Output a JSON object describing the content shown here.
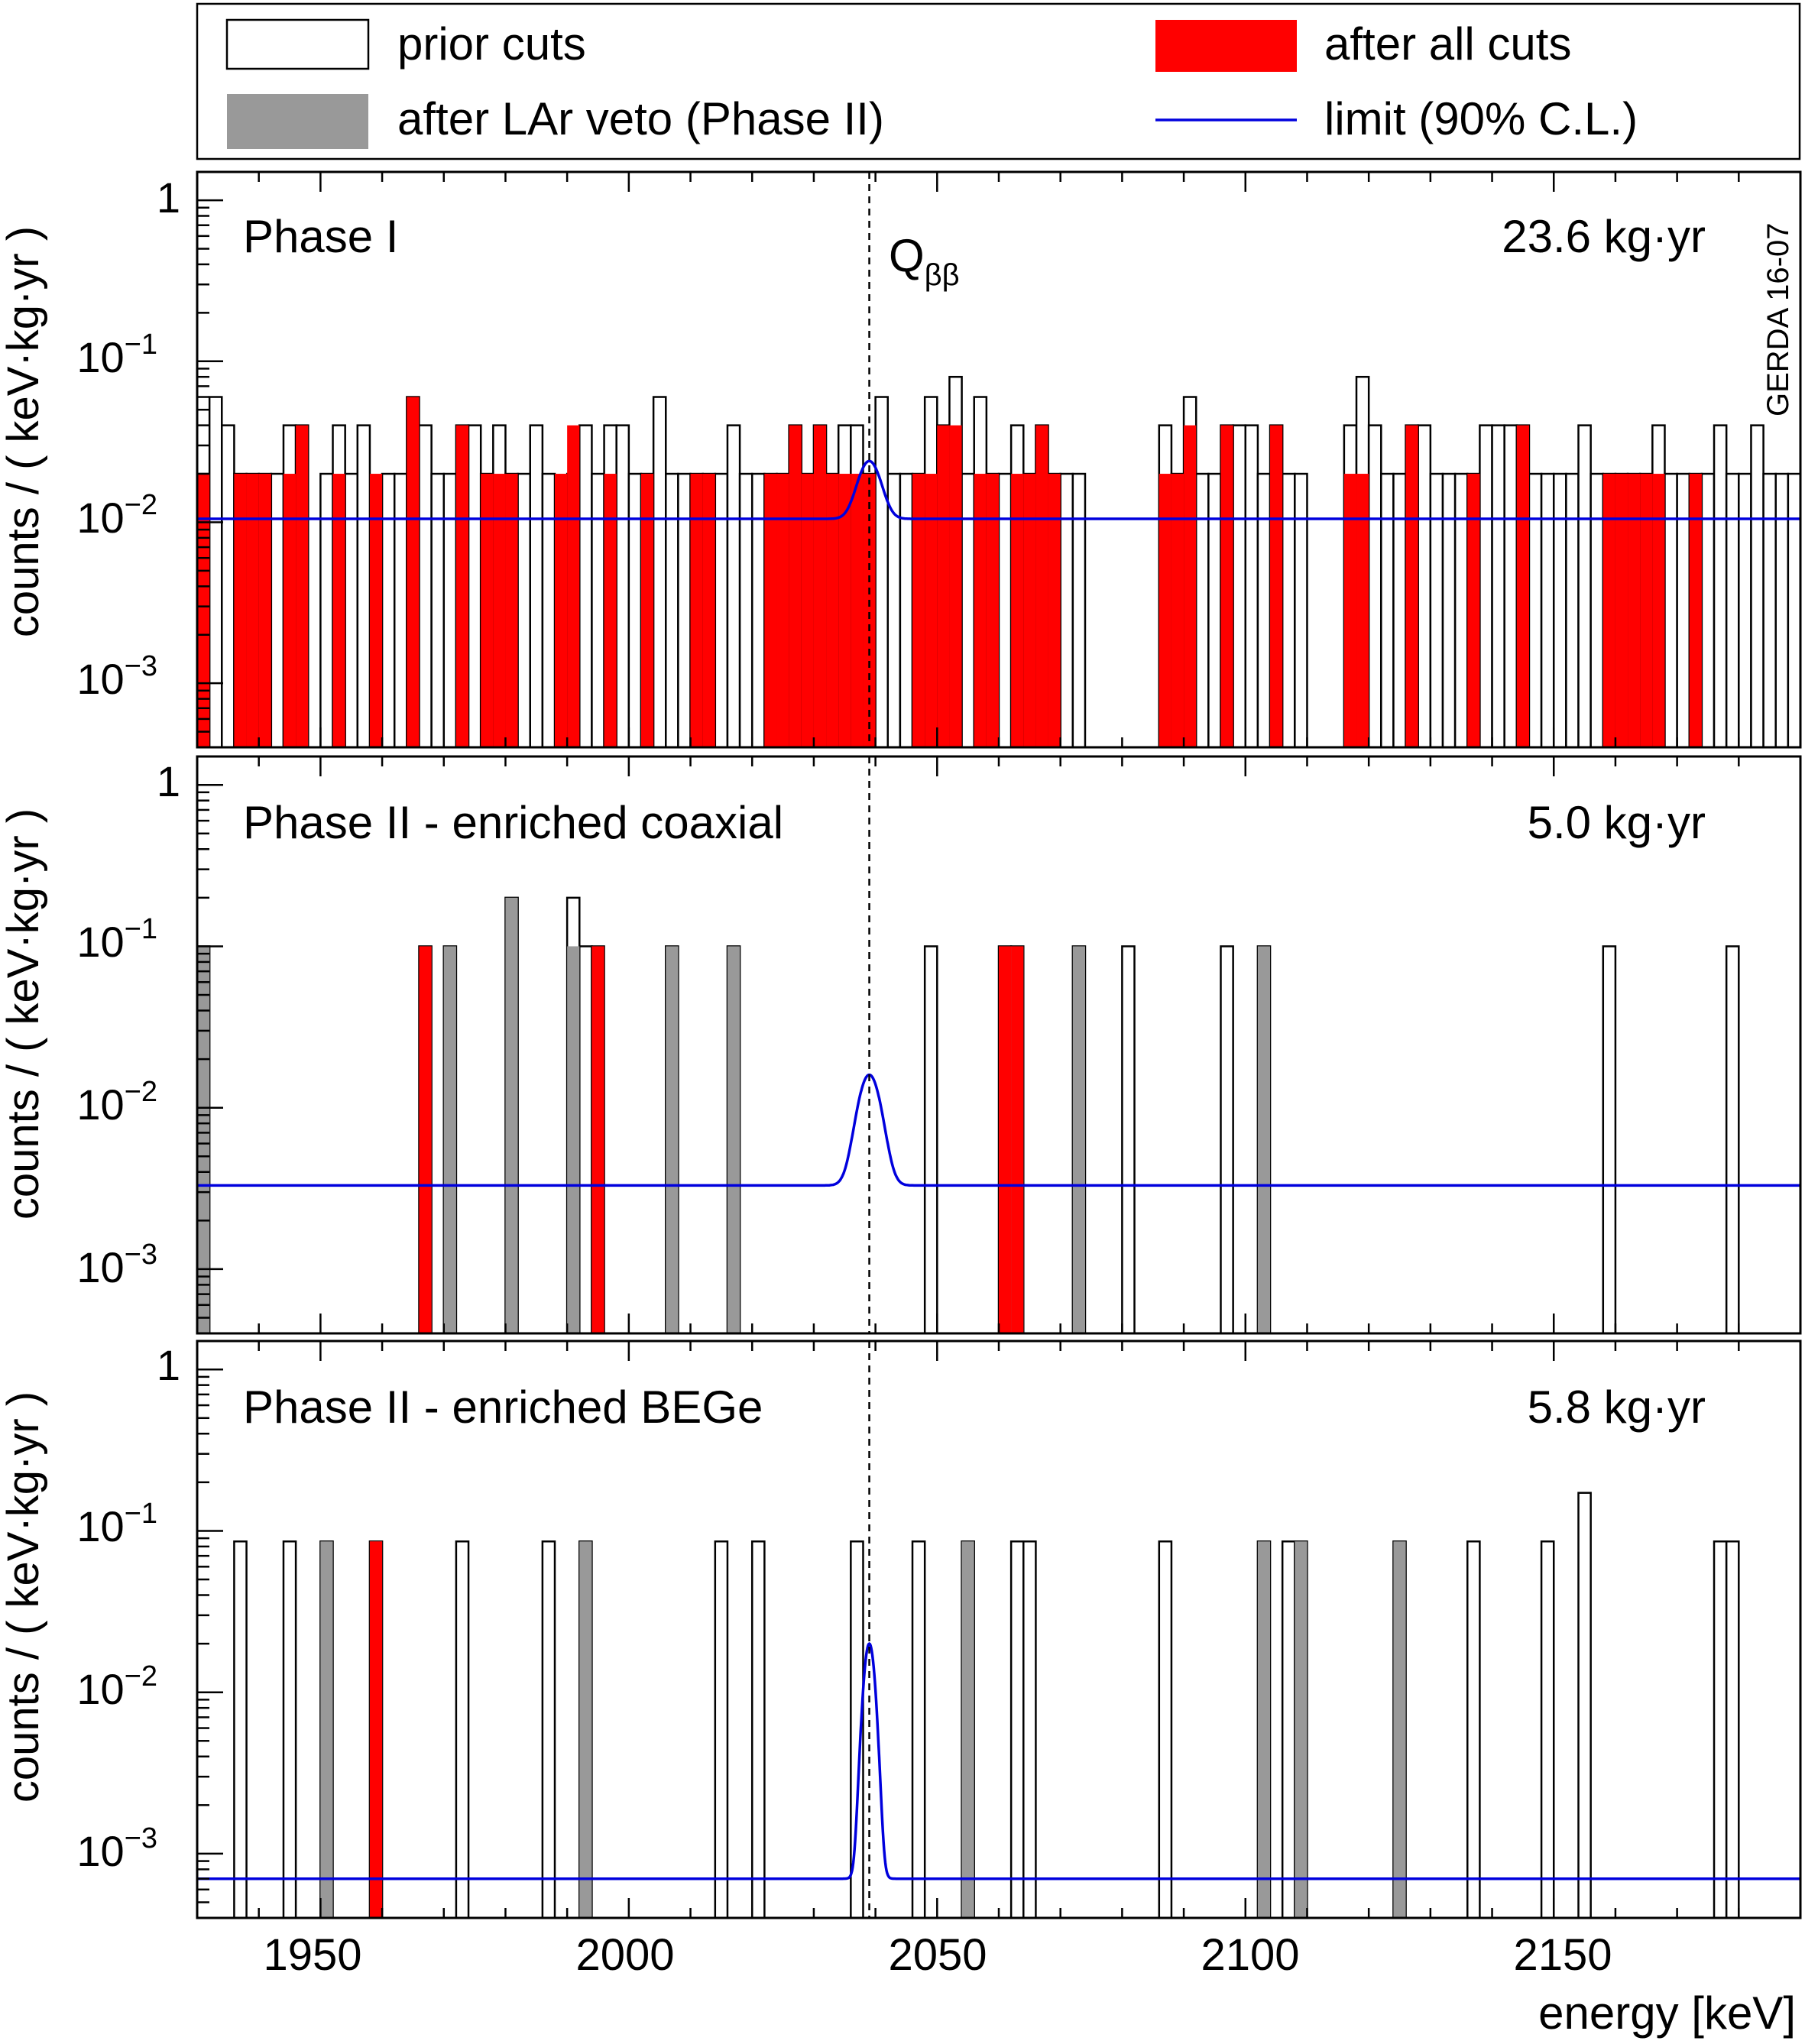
{
  "legend": {
    "entries": [
      {
        "label": "prior cuts",
        "style": "open"
      },
      {
        "label": "after LAr veto (Phase II)",
        "style": "gray"
      },
      {
        "label": "after all cuts",
        "style": "red"
      },
      {
        "label": "limit (90% C.L.)",
        "style": "line"
      }
    ]
  },
  "colors": {
    "prior": "#ffffff",
    "lar": "#999999",
    "all_cuts": "#ff0000",
    "limit": "#0000dd",
    "axis": "#000000"
  },
  "x_axis": {
    "label": "energy [keV]",
    "range": [
      1930,
      2190
    ],
    "ticks": [
      "1950",
      "2000",
      "2050",
      "2100",
      "2150"
    ]
  },
  "y_axis": {
    "label": "counts / ( keV·kg·yr )",
    "scale": "log",
    "ticks": [
      "1",
      "10",
      "10",
      "10"
    ],
    "tick_exponents": [
      "",
      "−1",
      "−2",
      "−3"
    ]
  },
  "q_label": {
    "main": "Q",
    "sub": "ββ",
    "energy": 2039
  },
  "watermark": "GERDA 16-07",
  "chart_data": [
    {
      "type": "bar",
      "title": "Phase I",
      "exposure": "23.6 kg·yr",
      "bin_width": 2,
      "xlim": [
        1930,
        2190
      ],
      "ylim": [
        0.0004,
        1.5
      ],
      "series": [
        {
          "name": "prior cuts",
          "bins": [
            [
              1930,
              0.02
            ],
            [
              1932,
              0.06
            ],
            [
              1934,
              0.04
            ],
            [
              1936,
              0.02
            ],
            [
              1938,
              0.02
            ],
            [
              1940,
              0.02
            ],
            [
              1942,
              0.02
            ],
            [
              1944,
              0.04
            ],
            [
              1946,
              0.04
            ],
            [
              1950,
              0.02
            ],
            [
              1952,
              0.04
            ],
            [
              1954,
              0.02
            ],
            [
              1956,
              0.04
            ],
            [
              1960,
              0.02
            ],
            [
              1962,
              0.02
            ],
            [
              1964,
              0.06
            ],
            [
              1966,
              0.04
            ],
            [
              1968,
              0.02
            ],
            [
              1970,
              0.02
            ],
            [
              1972,
              0.04
            ],
            [
              1974,
              0.04
            ],
            [
              1976,
              0.02
            ],
            [
              1978,
              0.04
            ],
            [
              1980,
              0.02
            ],
            [
              1982,
              0.02
            ],
            [
              1984,
              0.04
            ],
            [
              1986,
              0.02
            ],
            [
              1990,
              0.02
            ],
            [
              1992,
              0.04
            ],
            [
              1994,
              0.02
            ],
            [
              1996,
              0.04
            ],
            [
              1998,
              0.04
            ],
            [
              2000,
              0.02
            ],
            [
              2002,
              0.02
            ],
            [
              2004,
              0.06
            ],
            [
              2006,
              0.02
            ],
            [
              2008,
              0.02
            ],
            [
              2010,
              0.02
            ],
            [
              2012,
              0.02
            ],
            [
              2014,
              0.02
            ],
            [
              2016,
              0.04
            ],
            [
              2018,
              0.02
            ],
            [
              2020,
              0.02
            ],
            [
              2022,
              0.02
            ],
            [
              2024,
              0.02
            ],
            [
              2026,
              0.04
            ],
            [
              2028,
              0.02
            ],
            [
              2030,
              0.04
            ],
            [
              2032,
              0.02
            ],
            [
              2034,
              0.04
            ],
            [
              2036,
              0.04
            ],
            [
              2038,
              0.02
            ],
            [
              2040,
              0.06
            ],
            [
              2042,
              0.02
            ],
            [
              2044,
              0.02
            ],
            [
              2046,
              0.02
            ],
            [
              2048,
              0.06
            ],
            [
              2050,
              0.04
            ],
            [
              2052,
              0.08
            ],
            [
              2054,
              0.02
            ],
            [
              2056,
              0.06
            ],
            [
              2058,
              0.02
            ],
            [
              2060,
              0.02
            ],
            [
              2062,
              0.04
            ],
            [
              2064,
              0.02
            ],
            [
              2066,
              0.04
            ],
            [
              2068,
              0.02
            ],
            [
              2070,
              0.02
            ],
            [
              2072,
              0.02
            ],
            [
              2086,
              0.04
            ],
            [
              2088,
              0.02
            ],
            [
              2090,
              0.06
            ],
            [
              2092,
              0.02
            ],
            [
              2094,
              0.02
            ],
            [
              2096,
              0.04
            ],
            [
              2098,
              0.04
            ],
            [
              2100,
              0.04
            ],
            [
              2102,
              0.02
            ],
            [
              2104,
              0.04
            ],
            [
              2106,
              0.02
            ],
            [
              2108,
              0.02
            ],
            [
              2116,
              0.04
            ],
            [
              2118,
              0.08
            ],
            [
              2120,
              0.04
            ],
            [
              2122,
              0.02
            ],
            [
              2124,
              0.02
            ],
            [
              2126,
              0.04
            ],
            [
              2128,
              0.04
            ],
            [
              2130,
              0.02
            ],
            [
              2132,
              0.02
            ],
            [
              2134,
              0.02
            ],
            [
              2136,
              0.02
            ],
            [
              2138,
              0.04
            ],
            [
              2140,
              0.04
            ],
            [
              2142,
              0.04
            ],
            [
              2144,
              0.04
            ],
            [
              2146,
              0.02
            ],
            [
              2148,
              0.02
            ],
            [
              2150,
              0.02
            ],
            [
              2152,
              0.02
            ],
            [
              2154,
              0.04
            ],
            [
              2156,
              0.02
            ],
            [
              2158,
              0.02
            ],
            [
              2160,
              0.02
            ],
            [
              2162,
              0.02
            ],
            [
              2164,
              0.02
            ],
            [
              2166,
              0.04
            ],
            [
              2168,
              0.02
            ],
            [
              2170,
              0.02
            ],
            [
              2172,
              0.02
            ],
            [
              2174,
              0.02
            ],
            [
              2176,
              0.04
            ],
            [
              2178,
              0.02
            ],
            [
              2180,
              0.02
            ],
            [
              2182,
              0.04
            ],
            [
              2184,
              0.02
            ],
            [
              2186,
              0.02
            ],
            [
              2188,
              0.02
            ]
          ]
        },
        {
          "name": "after all cuts",
          "bins": [
            [
              1930,
              0.02
            ],
            [
              1936,
              0.02
            ],
            [
              1938,
              0.02
            ],
            [
              1940,
              0.02
            ],
            [
              1944,
              0.02
            ],
            [
              1946,
              0.04
            ],
            [
              1952,
              0.02
            ],
            [
              1958,
              0.02
            ],
            [
              1964,
              0.06
            ],
            [
              1972,
              0.04
            ],
            [
              1976,
              0.02
            ],
            [
              1978,
              0.02
            ],
            [
              1980,
              0.02
            ],
            [
              1988,
              0.02
            ],
            [
              1990,
              0.04
            ],
            [
              1996,
              0.02
            ],
            [
              2002,
              0.02
            ],
            [
              2010,
              0.02
            ],
            [
              2012,
              0.02
            ],
            [
              2022,
              0.02
            ],
            [
              2024,
              0.02
            ],
            [
              2026,
              0.04
            ],
            [
              2028,
              0.02
            ],
            [
              2030,
              0.04
            ],
            [
              2032,
              0.02
            ],
            [
              2034,
              0.02
            ],
            [
              2036,
              0.02
            ],
            [
              2038,
              0.02
            ],
            [
              2046,
              0.02
            ],
            [
              2048,
              0.02
            ],
            [
              2050,
              0.04
            ],
            [
              2052,
              0.04
            ],
            [
              2056,
              0.02
            ],
            [
              2058,
              0.02
            ],
            [
              2062,
              0.02
            ],
            [
              2064,
              0.02
            ],
            [
              2066,
              0.04
            ],
            [
              2068,
              0.02
            ],
            [
              2086,
              0.02
            ],
            [
              2088,
              0.02
            ],
            [
              2090,
              0.04
            ],
            [
              2096,
              0.04
            ],
            [
              2104,
              0.04
            ],
            [
              2116,
              0.02
            ],
            [
              2118,
              0.02
            ],
            [
              2126,
              0.04
            ],
            [
              2136,
              0.02
            ],
            [
              2144,
              0.04
            ],
            [
              2158,
              0.02
            ],
            [
              2160,
              0.02
            ],
            [
              2162,
              0.02
            ],
            [
              2164,
              0.02
            ],
            [
              2166,
              0.02
            ],
            [
              2172,
              0.02
            ]
          ]
        }
      ],
      "limit": {
        "baseline": 0.0105,
        "peak": 0.024,
        "mean": 2039,
        "sigma": 1.7
      }
    },
    {
      "type": "bar",
      "title": "Phase II - enriched coaxial",
      "exposure": "5.0 kg·yr",
      "bin_width": 2,
      "xlim": [
        1930,
        2190
      ],
      "ylim": [
        0.0004,
        1.5
      ],
      "series": [
        {
          "name": "prior cuts",
          "bins": [
            [
              1930,
              0.1
            ],
            [
              1966,
              0.1
            ],
            [
              1970,
              0.1
            ],
            [
              1980,
              0.2
            ],
            [
              1990,
              0.2
            ],
            [
              1992,
              0.1
            ],
            [
              1994,
              0.1
            ],
            [
              2006,
              0.1
            ],
            [
              2016,
              0.1
            ],
            [
              2048,
              0.1
            ],
            [
              2060,
              0.1
            ],
            [
              2062,
              0.1
            ],
            [
              2072,
              0.1
            ],
            [
              2080,
              0.1
            ],
            [
              2096,
              0.1
            ],
            [
              2102,
              0.1
            ],
            [
              2158,
              0.1
            ],
            [
              2178,
              0.1
            ]
          ]
        },
        {
          "name": "after LAr veto (Phase II)",
          "bins": [
            [
              1930,
              0.1
            ],
            [
              1966,
              0.1
            ],
            [
              1970,
              0.1
            ],
            [
              1980,
              0.2
            ],
            [
              1990,
              0.1
            ],
            [
              1994,
              0.1
            ],
            [
              2006,
              0.1
            ],
            [
              2016,
              0.1
            ],
            [
              2060,
              0.1
            ],
            [
              2062,
              0.1
            ],
            [
              2072,
              0.1
            ],
            [
              2102,
              0.1
            ]
          ]
        },
        {
          "name": "after all cuts",
          "bins": [
            [
              1966,
              0.1
            ],
            [
              1994,
              0.1
            ],
            [
              2060,
              0.1
            ],
            [
              2062,
              0.1
            ]
          ]
        }
      ],
      "limit": {
        "baseline": 0.0033,
        "peak": 0.016,
        "mean": 2039,
        "sigma": 1.7
      }
    },
    {
      "type": "bar",
      "title": "Phase II - enriched BEGe",
      "exposure": "5.8 kg·yr",
      "bin_width": 2,
      "xlim": [
        1930,
        2190
      ],
      "ylim": [
        0.0004,
        1.5
      ],
      "series": [
        {
          "name": "prior cuts",
          "bins": [
            [
              1936,
              0.086
            ],
            [
              1944,
              0.086
            ],
            [
              1950,
              0.086
            ],
            [
              1958,
              0.086
            ],
            [
              1972,
              0.086
            ],
            [
              1986,
              0.086
            ],
            [
              1992,
              0.086
            ],
            [
              2014,
              0.086
            ],
            [
              2020,
              0.086
            ],
            [
              2036,
              0.086
            ],
            [
              2046,
              0.086
            ],
            [
              2054,
              0.086
            ],
            [
              2062,
              0.086
            ],
            [
              2064,
              0.086
            ],
            [
              2086,
              0.086
            ],
            [
              2102,
              0.086
            ],
            [
              2106,
              0.086
            ],
            [
              2108,
              0.086
            ],
            [
              2124,
              0.086
            ],
            [
              2136,
              0.086
            ],
            [
              2148,
              0.086
            ],
            [
              2154,
              0.172
            ],
            [
              2176,
              0.086
            ],
            [
              2178,
              0.086
            ]
          ]
        },
        {
          "name": "after LAr veto (Phase II)",
          "bins": [
            [
              1950,
              0.086
            ],
            [
              1958,
              0.086
            ],
            [
              1992,
              0.086
            ],
            [
              2054,
              0.086
            ],
            [
              2102,
              0.086
            ],
            [
              2108,
              0.086
            ],
            [
              2124,
              0.086
            ]
          ]
        },
        {
          "name": "after all cuts",
          "bins": [
            [
              1958,
              0.086
            ]
          ]
        }
      ],
      "limit": {
        "baseline": 0.0007,
        "peak": 0.02,
        "mean": 2039,
        "sigma": 0.85
      }
    }
  ]
}
